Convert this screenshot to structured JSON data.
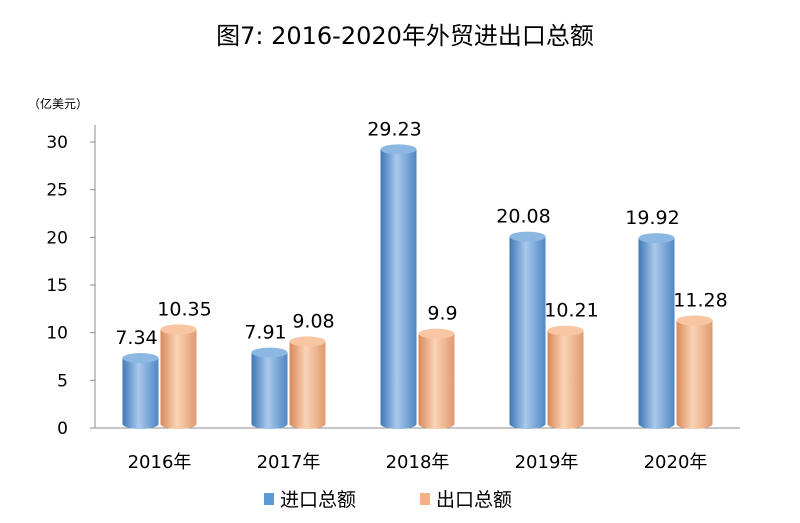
{
  "chart_data": {
    "type": "bar",
    "title": "图7: 2016-2020年外贸进出口总额",
    "unit_label": "（亿美元）",
    "categories": [
      "2016年",
      "2017年",
      "2018年",
      "2019年",
      "2020年"
    ],
    "series": [
      {
        "name": "进口总额",
        "values": [
          7.34,
          7.91,
          29.23,
          20.08,
          19.92
        ],
        "labels": [
          "7.34",
          "7.91",
          "29.23",
          "20.08",
          "19.92"
        ],
        "color": "#5b9bd5"
      },
      {
        "name": "出口总额",
        "values": [
          10.35,
          9.08,
          9.9,
          10.21,
          11.28
        ],
        "labels": [
          "10.35",
          "9.08",
          "9.9",
          "10.21",
          "11.28"
        ],
        "color": "#f4b183"
      }
    ],
    "yticks": [
      0,
      5,
      10,
      15,
      20,
      25,
      30
    ],
    "ylim": [
      0,
      30
    ],
    "grid": false,
    "legend_position": "bottom"
  }
}
